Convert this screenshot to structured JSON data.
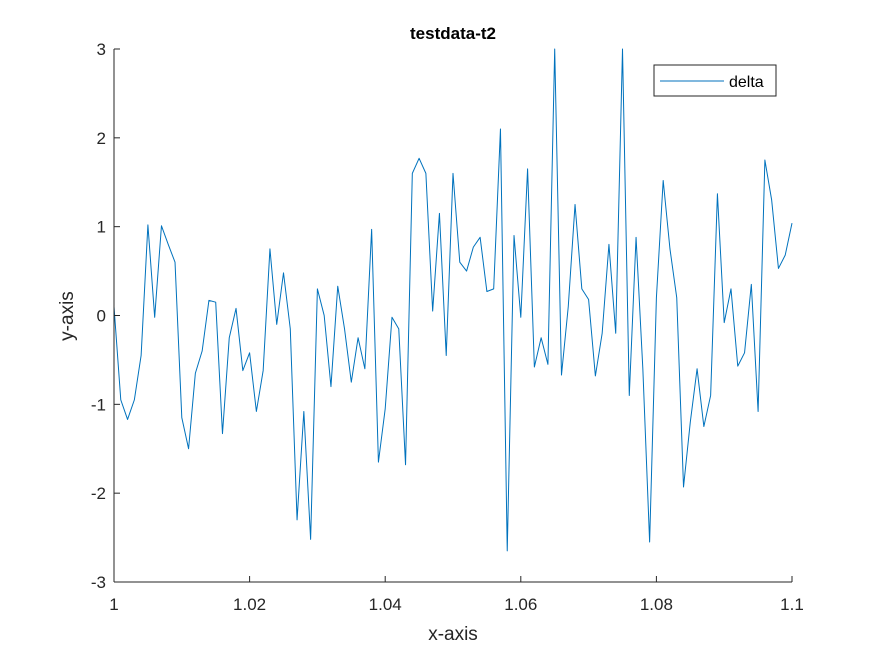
{
  "chart_data": {
    "type": "line",
    "title": "testdata-t2",
    "xlabel": "x-axis",
    "ylabel": "y-axis",
    "xlim": [
      1,
      1.1
    ],
    "ylim": [
      -3,
      3
    ],
    "xticks": [
      1,
      1.02,
      1.04,
      1.06,
      1.08,
      1.1
    ],
    "xtick_labels": [
      "1",
      "1.02",
      "1.04",
      "1.06",
      "1.08",
      "1.1"
    ],
    "yticks": [
      -3,
      -2,
      -1,
      0,
      1,
      2,
      3
    ],
    "ytick_labels": [
      "-3",
      "-2",
      "-1",
      "0",
      "1",
      "2",
      "3"
    ],
    "grid": false,
    "legend_position": "top-right",
    "series": [
      {
        "name": "delta",
        "color": "#0072bd",
        "x": [
          1.0,
          1.001,
          1.002,
          1.003,
          1.004,
          1.005,
          1.006,
          1.007,
          1.008,
          1.009,
          1.01,
          1.011,
          1.012,
          1.013,
          1.014,
          1.015,
          1.016,
          1.017,
          1.018,
          1.019,
          1.02,
          1.021,
          1.022,
          1.023,
          1.024,
          1.025,
          1.026,
          1.027,
          1.028,
          1.029,
          1.03,
          1.031,
          1.032,
          1.033,
          1.034,
          1.035,
          1.036,
          1.037,
          1.038,
          1.039,
          1.04,
          1.041,
          1.042,
          1.043,
          1.044,
          1.045,
          1.046,
          1.047,
          1.048,
          1.049,
          1.05,
          1.051,
          1.052,
          1.053,
          1.054,
          1.055,
          1.056,
          1.057,
          1.058,
          1.059,
          1.06,
          1.061,
          1.062,
          1.063,
          1.064,
          1.065,
          1.066,
          1.067,
          1.068,
          1.069,
          1.07,
          1.071,
          1.072,
          1.073,
          1.074,
          1.075,
          1.076,
          1.077,
          1.078,
          1.079,
          1.08,
          1.081,
          1.082,
          1.083,
          1.084,
          1.085,
          1.086,
          1.087,
          1.088,
          1.089,
          1.09,
          1.091,
          1.092,
          1.093,
          1.094,
          1.095,
          1.096,
          1.097,
          1.098,
          1.099,
          1.1
        ],
        "y": [
          0.1,
          -0.95,
          -1.17,
          -0.95,
          -0.45,
          1.02,
          -0.02,
          1.01,
          0.8,
          0.6,
          -1.15,
          -1.5,
          -0.65,
          -0.4,
          0.17,
          0.15,
          -1.33,
          -0.25,
          0.08,
          -0.62,
          -0.42,
          -1.08,
          -0.62,
          0.75,
          -0.1,
          0.48,
          -0.15,
          -2.3,
          -1.08,
          -2.52,
          0.3,
          0.0,
          -0.8,
          0.33,
          -0.15,
          -0.75,
          -0.25,
          -0.6,
          0.97,
          -1.65,
          -1.05,
          -0.02,
          -0.15,
          -1.68,
          1.6,
          1.77,
          1.6,
          0.05,
          1.15,
          -0.45,
          1.6,
          0.6,
          0.5,
          0.77,
          0.88,
          0.27,
          0.3,
          2.1,
          -2.65,
          0.9,
          -0.02,
          1.65,
          -0.58,
          -0.25,
          -0.55,
          3.0,
          -0.67,
          0.1,
          1.25,
          0.3,
          0.18,
          -0.68,
          -0.2,
          0.8,
          -0.2,
          3.0,
          -0.9,
          0.88,
          -0.6,
          -2.55,
          0.2,
          1.52,
          0.75,
          0.2,
          -1.93,
          -1.2,
          -0.6,
          -1.25,
          -0.9,
          1.37,
          -0.08,
          0.3,
          -0.57,
          -0.42,
          0.35,
          -1.08,
          1.75,
          1.3,
          0.53,
          0.68,
          1.04
        ]
      }
    ]
  }
}
